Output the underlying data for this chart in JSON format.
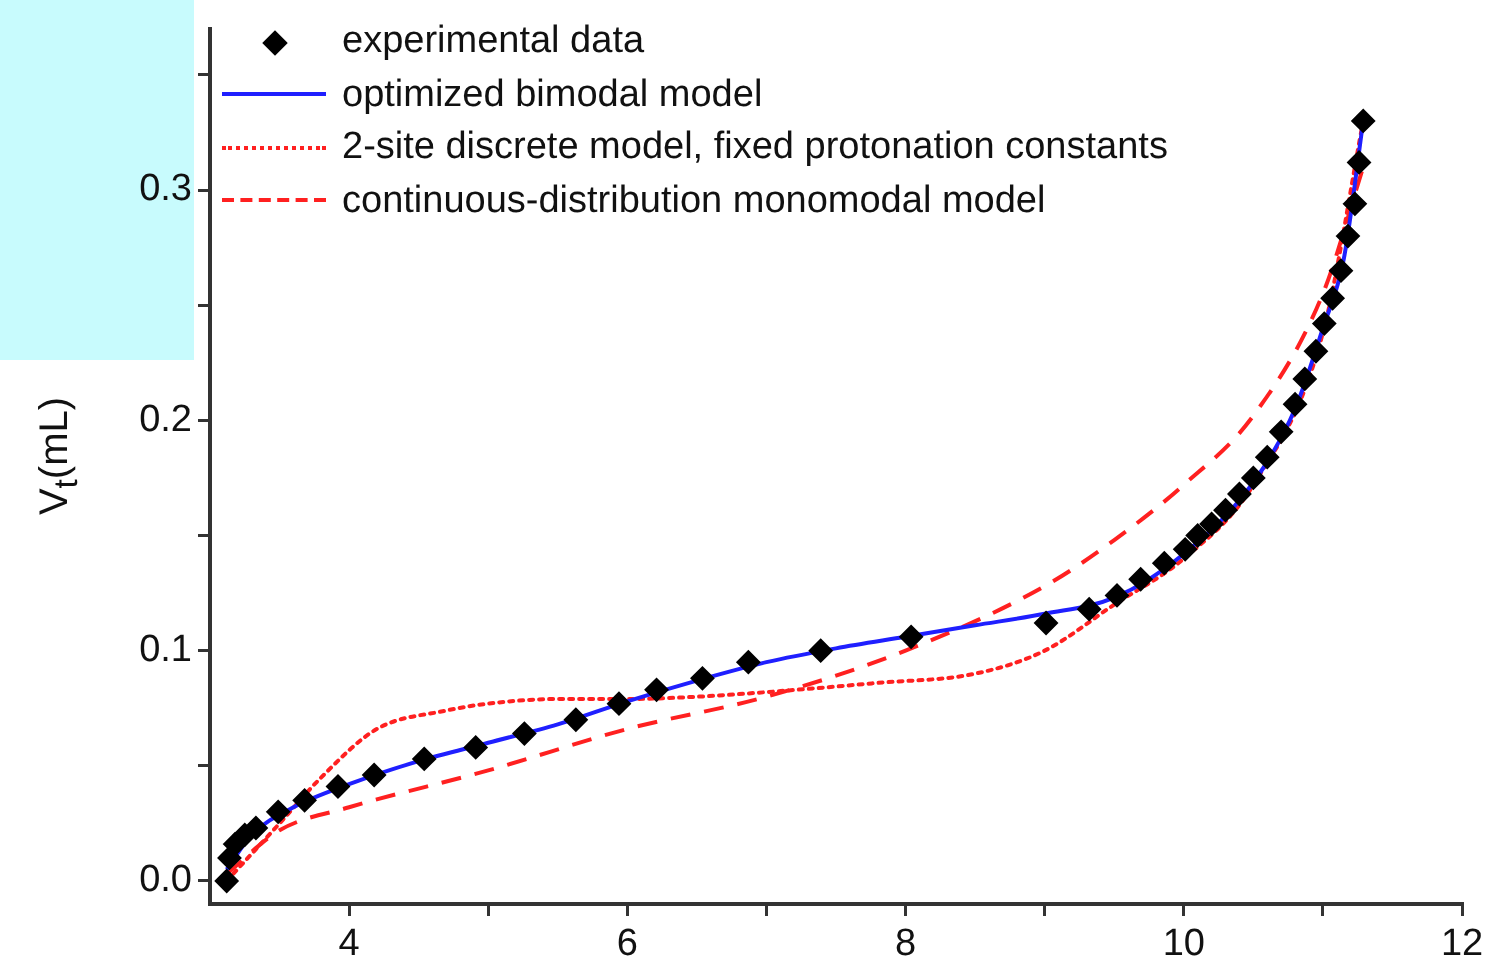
{
  "chart_data": {
    "type": "line",
    "ylabel": "V$_{t}$(mL)",
    "xlim": [
      3,
      12
    ],
    "xticks": [
      4,
      {
        "value": 5,
        "label": null
      },
      6,
      {
        "value": 7,
        "label": null
      },
      8,
      {
        "value": 9,
        "label": null
      },
      10,
      {
        "value": 11,
        "label": null
      },
      12
    ],
    "ylim": [
      -0.01,
      0.37
    ],
    "yticks": [
      {
        "value": 0,
        "label": "0.0"
      },
      {
        "value": 0.05,
        "label": null
      },
      0.1,
      {
        "value": 0.15,
        "label": null
      },
      0.2,
      {
        "value": 0.25,
        "label": null
      },
      0.3,
      {
        "value": 0.35,
        "label": null
      }
    ],
    "legend": "top left",
    "grid": false,
    "series": [
      {
        "name": "experimental data",
        "type": "scatter",
        "marker": "diamond",
        "color": "#000000",
        "x": [
          3.12,
          3.14,
          3.18,
          3.25,
          3.33,
          3.49,
          3.68,
          3.92,
          4.18,
          4.54,
          4.91,
          5.26,
          5.63,
          5.94,
          6.21,
          6.54,
          6.87,
          7.39,
          8.04,
          9.01,
          9.32,
          9.52,
          9.69,
          9.86,
          10.01,
          10.1,
          10.2,
          10.3,
          10.4,
          10.5,
          10.6,
          10.7,
          10.8,
          10.87,
          10.95,
          11.01,
          11.07,
          11.13,
          11.18,
          11.23,
          11.26,
          11.29
        ],
        "values": [
          0.0,
          0.01,
          0.016,
          0.02,
          0.023,
          0.03,
          0.035,
          0.041,
          0.046,
          0.053,
          0.058,
          0.064,
          0.07,
          0.077,
          0.083,
          0.088,
          0.095,
          0.1,
          0.106,
          0.112,
          0.118,
          0.124,
          0.131,
          0.138,
          0.144,
          0.15,
          0.155,
          0.161,
          0.168,
          0.175,
          0.184,
          0.195,
          0.207,
          0.218,
          0.23,
          0.242,
          0.253,
          0.265,
          0.28,
          0.294,
          0.312,
          0.33
        ]
      },
      {
        "name": "optimized bimodal model",
        "type": "line",
        "line_style": "solid",
        "color": "#1f1fff",
        "x": [
          3.12,
          3.3,
          3.6,
          4,
          4.5,
          5,
          5.5,
          6,
          6.5,
          7,
          7.5,
          8,
          8.5,
          9,
          9.5,
          10,
          10.5,
          10.8,
          11,
          11.15,
          11.29
        ],
        "values": [
          0.005,
          0.02,
          0.032,
          0.042,
          0.052,
          0.06,
          0.068,
          0.078,
          0.087,
          0.095,
          0.101,
          0.106,
          0.111,
          0.116,
          0.123,
          0.142,
          0.173,
          0.205,
          0.24,
          0.27,
          0.33
        ]
      },
      {
        "name": "2-site discrete model, fixed protonation constants",
        "type": "line",
        "line_style": "dotted",
        "color": "#ff2020",
        "x": [
          3.12,
          3.5,
          3.8,
          4.2,
          4.7,
          5,
          5.5,
          6,
          6.5,
          7,
          7.8,
          8.5,
          9,
          9.5,
          10,
          10.5,
          11,
          11.29
        ],
        "values": [
          0.0,
          0.025,
          0.045,
          0.066,
          0.074,
          0.077,
          0.079,
          0.079,
          0.08,
          0.082,
          0.086,
          0.09,
          0.1,
          0.12,
          0.14,
          0.172,
          0.238,
          0.33
        ]
      },
      {
        "name": "continuous-distribution monomodal model",
        "type": "line",
        "line_style": "dashed",
        "color": "#ff2020",
        "x": [
          3.12,
          3.5,
          4,
          5,
          6,
          7,
          8,
          9,
          9.5,
          10,
          10.5,
          11,
          11.29
        ],
        "values": [
          0.003,
          0.022,
          0.032,
          0.048,
          0.066,
          0.08,
          0.1,
          0.128,
          0.148,
          0.172,
          0.202,
          0.255,
          0.31
        ]
      }
    ]
  }
}
